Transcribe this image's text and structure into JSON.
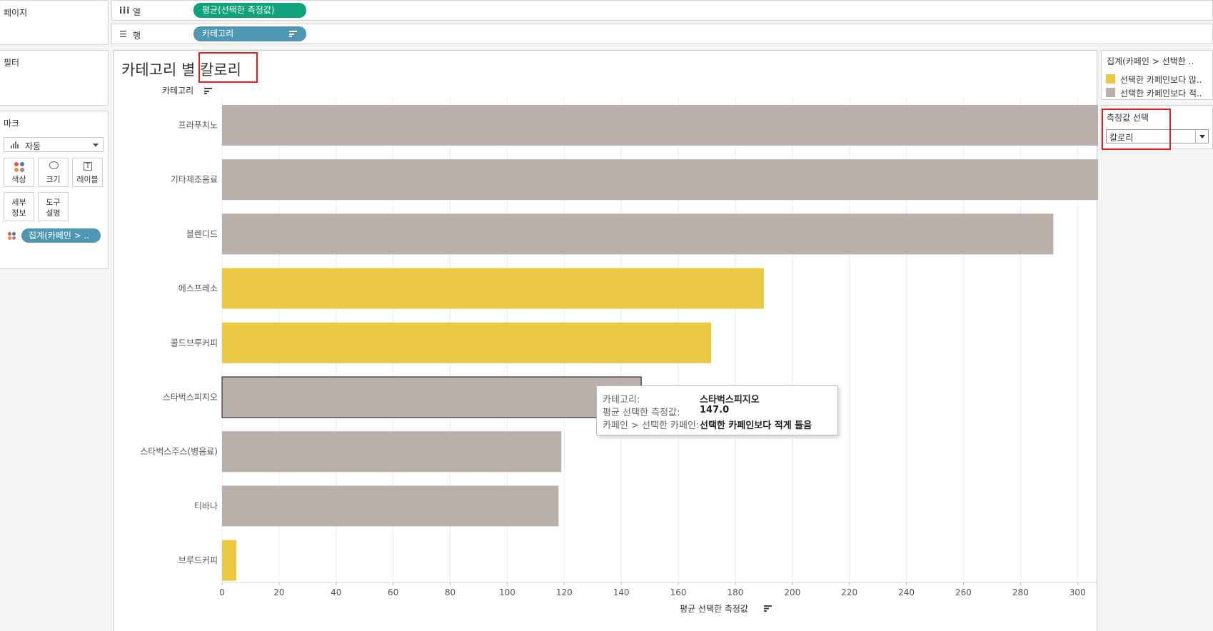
{
  "left_panels": {
    "pages_title": "페이지",
    "filters_title": "필터",
    "marks_title": "마크",
    "mark_type": "자동",
    "mark_buttons": {
      "color": "색상",
      "size": "크기",
      "label": "레이블",
      "detail_line1": "세부",
      "detail_line2": "정보",
      "tooltip_line1": "도구",
      "tooltip_line2": "설명"
    },
    "color_pill": "집계(카페인 > ..",
    "label_icon_glyph": "T"
  },
  "shelves": {
    "columns_icon": "iii",
    "columns_label": "열",
    "columns_pill": "평균(선택한 측정값)",
    "rows_icon": "☰",
    "rows_label": "행",
    "rows_pill": "카테고리"
  },
  "sheet": {
    "title_part1": "카테고리 별",
    "title_part2": "칼로리",
    "row_header": "카테고리"
  },
  "tooltip": {
    "row1_key": "카테고리:",
    "row1_val": "스타벅스피지오",
    "row2_key": "평균 선택한 측정값:",
    "row2_val": "147.0",
    "row3_key": "카페인 > 선택한 카페인:",
    "row3_val": "선택한 카페인보다 적게 들음"
  },
  "legend": {
    "title": "집계(카페인 > 선택한 ..",
    "items": [
      {
        "label": "선택한 카페인보다 많..",
        "color": "#ebc844"
      },
      {
        "label": "선택한 카페인보다 적..",
        "color": "#bab0ab"
      }
    ]
  },
  "parameter": {
    "title": "측정값 선택",
    "value": "칼로리"
  },
  "chart_data": {
    "type": "bar",
    "orientation": "horizontal",
    "categories": [
      "프라푸치노",
      "기타제조음료",
      "블렌디드",
      "에스프레소",
      "콜드브루커피",
      "스타벅스피지오",
      "스타벅스주스(병음료)",
      "티바나",
      "브루드커피"
    ],
    "values": [
      329,
      321,
      291.5,
      190,
      171.5,
      147,
      119,
      118,
      5
    ],
    "groups": [
      "less",
      "less",
      "less",
      "more",
      "more",
      "less",
      "less",
      "less",
      "more"
    ],
    "group_colors": {
      "more": "#ebc844",
      "less": "#bab0ab"
    },
    "highlighted": "스타벅스피지오",
    "xlabel": "평균 선택한 측정값",
    "xlim": [
      0,
      345
    ],
    "xticks": [
      0,
      20,
      40,
      60,
      80,
      100,
      120,
      140,
      160,
      180,
      200,
      220,
      240,
      260,
      280,
      300,
      320,
      340
    ],
    "grid": true
  }
}
